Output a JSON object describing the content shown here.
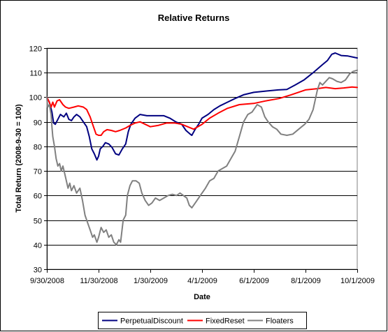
{
  "chart_data": {
    "type": "line",
    "title": "Relative Returns",
    "xlabel": "Date",
    "ylabel": "Total Return (2008-9-30 = 100)",
    "ylim": [
      30,
      120
    ],
    "yticks": [
      30,
      40,
      50,
      60,
      70,
      80,
      90,
      100,
      110,
      120
    ],
    "xlim": [
      "2008-09-30",
      "2009-10-01"
    ],
    "xticks": [
      "9/30/2008",
      "11/30/2008",
      "1/30/2009",
      "4/1/2009",
      "6/1/2009",
      "8/1/2009",
      "10/1/2009"
    ],
    "xtick_dates": [
      "2008-09-30",
      "2008-11-30",
      "2009-01-30",
      "2009-04-01",
      "2009-06-01",
      "2009-08-01",
      "2009-10-01"
    ],
    "grid": "horizontal",
    "legend_position": "bottom",
    "series": [
      {
        "name": "PerpetualDiscount",
        "color": "#000080",
        "points": [
          [
            "2008-09-30",
            100
          ],
          [
            "2008-10-03",
            98
          ],
          [
            "2008-10-06",
            94
          ],
          [
            "2008-10-08",
            89.5
          ],
          [
            "2008-10-10",
            89
          ],
          [
            "2008-10-13",
            91
          ],
          [
            "2008-10-16",
            93
          ],
          [
            "2008-10-20",
            92
          ],
          [
            "2008-10-23",
            93.5
          ],
          [
            "2008-10-26",
            91
          ],
          [
            "2008-10-29",
            90.5
          ],
          [
            "2008-11-01",
            92
          ],
          [
            "2008-11-04",
            93
          ],
          [
            "2008-11-08",
            92
          ],
          [
            "2008-11-12",
            90
          ],
          [
            "2008-11-16",
            88
          ],
          [
            "2008-11-19",
            84
          ],
          [
            "2008-11-22",
            79
          ],
          [
            "2008-11-25",
            77
          ],
          [
            "2008-11-28",
            74.5
          ],
          [
            "2008-11-30",
            76
          ],
          [
            "2008-12-02",
            79
          ],
          [
            "2008-12-05",
            80
          ],
          [
            "2008-12-08",
            81.5
          ],
          [
            "2008-12-12",
            81
          ],
          [
            "2008-12-16",
            79.5
          ],
          [
            "2008-12-20",
            77
          ],
          [
            "2008-12-24",
            76.5
          ],
          [
            "2008-12-28",
            79
          ],
          [
            "2009-01-01",
            81
          ],
          [
            "2009-01-04",
            86
          ],
          [
            "2009-01-07",
            89
          ],
          [
            "2009-01-12",
            91.5
          ],
          [
            "2009-01-18",
            93
          ],
          [
            "2009-01-26",
            92.5
          ],
          [
            "2009-02-05",
            92.5
          ],
          [
            "2009-02-15",
            92.5
          ],
          [
            "2009-02-22",
            91.5
          ],
          [
            "2009-03-01",
            90
          ],
          [
            "2009-03-08",
            89
          ],
          [
            "2009-03-13",
            86.5
          ],
          [
            "2009-03-18",
            85
          ],
          [
            "2009-03-20",
            84.5
          ],
          [
            "2009-03-24",
            87
          ],
          [
            "2009-03-28",
            89
          ],
          [
            "2009-04-01",
            91.5
          ],
          [
            "2009-04-08",
            93
          ],
          [
            "2009-04-15",
            95
          ],
          [
            "2009-04-22",
            96.5
          ],
          [
            "2009-05-01",
            98
          ],
          [
            "2009-05-10",
            99.5
          ],
          [
            "2009-05-20",
            101
          ],
          [
            "2009-06-01",
            102
          ],
          [
            "2009-06-15",
            102.5
          ],
          [
            "2009-06-30",
            103
          ],
          [
            "2009-07-10",
            103.2
          ],
          [
            "2009-07-20",
            105
          ],
          [
            "2009-07-30",
            107
          ],
          [
            "2009-08-10",
            110
          ],
          [
            "2009-08-20",
            113
          ],
          [
            "2009-08-27",
            115
          ],
          [
            "2009-09-01",
            117.5
          ],
          [
            "2009-09-05",
            118
          ],
          [
            "2009-09-12",
            117
          ],
          [
            "2009-09-20",
            116.8
          ],
          [
            "2009-09-28",
            116.2
          ],
          [
            "2009-10-01",
            116
          ]
        ]
      },
      {
        "name": "FixedReset",
        "color": "#ff0000",
        "points": [
          [
            "2008-09-30",
            100
          ],
          [
            "2008-10-03",
            98
          ],
          [
            "2008-10-05",
            96
          ],
          [
            "2008-10-07",
            98
          ],
          [
            "2008-10-09",
            96
          ],
          [
            "2008-10-12",
            98.5
          ],
          [
            "2008-10-15",
            99
          ],
          [
            "2008-10-19",
            97
          ],
          [
            "2008-10-22",
            96
          ],
          [
            "2008-10-26",
            95.5
          ],
          [
            "2008-11-01",
            96
          ],
          [
            "2008-11-06",
            96.5
          ],
          [
            "2008-11-12",
            96
          ],
          [
            "2008-11-16",
            95
          ],
          [
            "2008-11-20",
            92
          ],
          [
            "2008-11-24",
            88
          ],
          [
            "2008-11-27",
            85
          ],
          [
            "2008-11-30",
            84.5
          ],
          [
            "2008-12-03",
            84.5
          ],
          [
            "2008-12-06",
            86
          ],
          [
            "2008-12-10",
            86.8
          ],
          [
            "2008-12-15",
            86.5
          ],
          [
            "2008-12-20",
            86
          ],
          [
            "2008-12-25",
            86.5
          ],
          [
            "2009-01-01",
            87.5
          ],
          [
            "2009-01-06",
            88.5
          ],
          [
            "2009-01-12",
            89.5
          ],
          [
            "2009-01-18",
            90
          ],
          [
            "2009-01-24",
            89
          ],
          [
            "2009-01-30",
            88
          ],
          [
            "2009-02-08",
            88.5
          ],
          [
            "2009-02-18",
            89.5
          ],
          [
            "2009-02-28",
            89.5
          ],
          [
            "2009-03-08",
            89
          ],
          [
            "2009-03-15",
            88
          ],
          [
            "2009-03-22",
            87
          ],
          [
            "2009-04-01",
            89
          ],
          [
            "2009-04-10",
            91.5
          ],
          [
            "2009-04-20",
            93.5
          ],
          [
            "2009-05-01",
            95.5
          ],
          [
            "2009-05-15",
            97
          ],
          [
            "2009-06-01",
            97.5
          ],
          [
            "2009-06-15",
            98.5
          ],
          [
            "2009-07-01",
            99.5
          ],
          [
            "2009-07-15",
            101
          ],
          [
            "2009-08-01",
            103
          ],
          [
            "2009-08-15",
            103.5
          ],
          [
            "2009-08-25",
            104
          ],
          [
            "2009-09-05",
            103.5
          ],
          [
            "2009-09-15",
            103.8
          ],
          [
            "2009-09-25",
            104.2
          ],
          [
            "2009-10-01",
            104
          ]
        ]
      },
      {
        "name": "Floaters",
        "color": "#808080",
        "points": [
          [
            "2008-09-30",
            100
          ],
          [
            "2008-10-01",
            96
          ],
          [
            "2008-10-03",
            97
          ],
          [
            "2008-10-05",
            93
          ],
          [
            "2008-10-06",
            88
          ],
          [
            "2008-10-07",
            84
          ],
          [
            "2008-10-09",
            80
          ],
          [
            "2008-10-11",
            75
          ],
          [
            "2008-10-13",
            72
          ],
          [
            "2008-10-15",
            73
          ],
          [
            "2008-10-17",
            70
          ],
          [
            "2008-10-19",
            72
          ],
          [
            "2008-10-21",
            69
          ],
          [
            "2008-10-23",
            66
          ],
          [
            "2008-10-25",
            63
          ],
          [
            "2008-10-27",
            65
          ],
          [
            "2008-10-29",
            62
          ],
          [
            "2008-11-01",
            64
          ],
          [
            "2008-11-04",
            61
          ],
          [
            "2008-11-08",
            63
          ],
          [
            "2008-11-11",
            58
          ],
          [
            "2008-11-14",
            52
          ],
          [
            "2008-11-17",
            49
          ],
          [
            "2008-11-20",
            46
          ],
          [
            "2008-11-23",
            43
          ],
          [
            "2008-11-25",
            44
          ],
          [
            "2008-11-28",
            41
          ],
          [
            "2008-11-30",
            43
          ],
          [
            "2008-12-03",
            47
          ],
          [
            "2008-12-06",
            45
          ],
          [
            "2008-12-09",
            46
          ],
          [
            "2008-12-12",
            43
          ],
          [
            "2008-12-15",
            44
          ],
          [
            "2008-12-18",
            41
          ],
          [
            "2008-12-21",
            40
          ],
          [
            "2008-12-24",
            42
          ],
          [
            "2008-12-26",
            41
          ],
          [
            "2008-12-29",
            50
          ],
          [
            "2009-01-01",
            52
          ],
          [
            "2009-01-03",
            60
          ],
          [
            "2009-01-06",
            64
          ],
          [
            "2009-01-09",
            66
          ],
          [
            "2009-01-13",
            66
          ],
          [
            "2009-01-17",
            65
          ],
          [
            "2009-01-20",
            61
          ],
          [
            "2009-01-24",
            58
          ],
          [
            "2009-01-28",
            56
          ],
          [
            "2009-02-01",
            57
          ],
          [
            "2009-02-05",
            59
          ],
          [
            "2009-02-10",
            58
          ],
          [
            "2009-02-15",
            59
          ],
          [
            "2009-02-20",
            60
          ],
          [
            "2009-02-25",
            60.5
          ],
          [
            "2009-03-02",
            60
          ],
          [
            "2009-03-06",
            61
          ],
          [
            "2009-03-10",
            60
          ],
          [
            "2009-03-14",
            59
          ],
          [
            "2009-03-17",
            56
          ],
          [
            "2009-03-20",
            55
          ],
          [
            "2009-03-24",
            57
          ],
          [
            "2009-03-28",
            59
          ],
          [
            "2009-04-01",
            61
          ],
          [
            "2009-04-05",
            63
          ],
          [
            "2009-04-10",
            66
          ],
          [
            "2009-04-15",
            67
          ],
          [
            "2009-04-20",
            70
          ],
          [
            "2009-04-25",
            71
          ],
          [
            "2009-04-30",
            72
          ],
          [
            "2009-05-05",
            75
          ],
          [
            "2009-05-10",
            78
          ],
          [
            "2009-05-15",
            84
          ],
          [
            "2009-05-20",
            90
          ],
          [
            "2009-05-25",
            93
          ],
          [
            "2009-05-30",
            94
          ],
          [
            "2009-06-05",
            97
          ],
          [
            "2009-06-10",
            96
          ],
          [
            "2009-06-14",
            92
          ],
          [
            "2009-06-18",
            90
          ],
          [
            "2009-06-23",
            88
          ],
          [
            "2009-06-28",
            87
          ],
          [
            "2009-07-03",
            85
          ],
          [
            "2009-07-10",
            84.5
          ],
          [
            "2009-07-17",
            85
          ],
          [
            "2009-07-24",
            87
          ],
          [
            "2009-07-31",
            89
          ],
          [
            "2009-08-05",
            91
          ],
          [
            "2009-08-10",
            95
          ],
          [
            "2009-08-15",
            103
          ],
          [
            "2009-08-18",
            106
          ],
          [
            "2009-08-21",
            105
          ],
          [
            "2009-08-25",
            106.5
          ],
          [
            "2009-08-29",
            108
          ],
          [
            "2009-09-02",
            107.5
          ],
          [
            "2009-09-07",
            106.5
          ],
          [
            "2009-09-12",
            106
          ],
          [
            "2009-09-17",
            107
          ],
          [
            "2009-09-22",
            109.5
          ],
          [
            "2009-09-26",
            110.5
          ],
          [
            "2009-10-01",
            111
          ]
        ]
      }
    ]
  }
}
